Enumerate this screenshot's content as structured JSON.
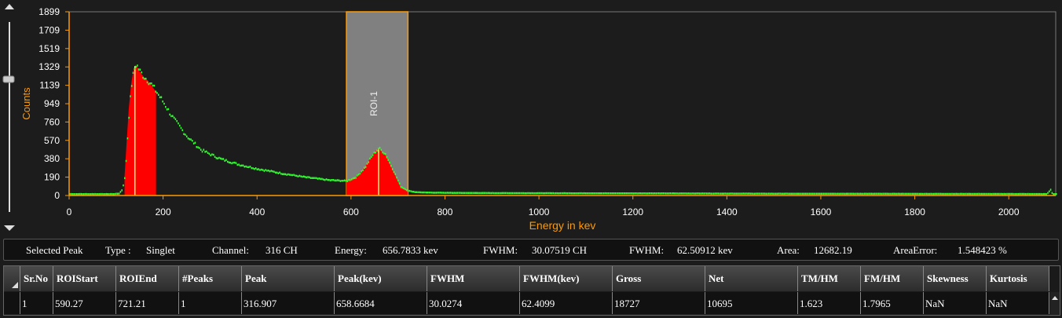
{
  "chart_data": {
    "type": "line",
    "xlabel": "Energy in kev",
    "ylabel": "Counts",
    "xlim": [
      0,
      2100
    ],
    "ylim": [
      0,
      1899
    ],
    "x_ticks": [
      "0",
      "200",
      "400",
      "600",
      "800",
      "1000",
      "1200",
      "1400",
      "1600",
      "1800",
      "2000"
    ],
    "y_ticks": [
      "0",
      "190",
      "380",
      "570",
      "760",
      "949",
      "1139",
      "1329",
      "1519",
      "1709",
      "1899"
    ],
    "roi": {
      "label": "ROI-1",
      "start": 590.27,
      "end": 721.21
    },
    "peaks": [
      140,
      658.67
    ],
    "filled_regions": [
      [
        118,
        185
      ],
      [
        590,
        721
      ]
    ],
    "series": [
      {
        "x": [
          0,
          95,
          105,
          112,
          118,
          122,
          127,
          132,
          137,
          141,
          145,
          150,
          155,
          160,
          167,
          175,
          185,
          200,
          220,
          250,
          280,
          320,
          360,
          400,
          450,
          500,
          550,
          590,
          610,
          630,
          645,
          658,
          672,
          690,
          705,
          720,
          735,
          760,
          800,
          900,
          1000,
          1200,
          1400,
          1600,
          1800,
          2000,
          2080,
          2088,
          2092,
          2100
        ],
        "y": [
          15,
          15,
          20,
          60,
          200,
          520,
          900,
          1150,
          1300,
          1350,
          1330,
          1280,
          1250,
          1220,
          1190,
          1140,
          1070,
          960,
          800,
          610,
          470,
          380,
          320,
          275,
          230,
          190,
          160,
          150,
          190,
          300,
          420,
          490,
          430,
          250,
          90,
          50,
          35,
          30,
          28,
          25,
          24,
          22,
          20,
          18,
          17,
          16,
          15,
          60,
          15,
          15
        ]
      }
    ]
  },
  "info_bar": {
    "selected_peak_label": "Selected Peak",
    "type_label": "Type :",
    "type_value": "Singlet",
    "channel_label": "Channel:",
    "channel_value": "316 CH",
    "energy_label": "Energy:",
    "energy_value": "656.7833 kev",
    "fwhm_ch_label": "FWHM:",
    "fwhm_ch_value": "30.07519 CH",
    "fwhm_kev_label": "FWHM:",
    "fwhm_kev_value": "62.50912 kev",
    "area_label": "Area:",
    "area_value": "12682.19",
    "area_error_label": "AreaError:",
    "area_error_value": "1.548423 %"
  },
  "table": {
    "columns": [
      "Sr.No",
      "ROIStart",
      "ROIEnd",
      "#Peaks",
      "Peak",
      "Peak(kev)",
      "FWHM",
      "FWHM(kev)",
      "Gross",
      "Net",
      "TM/HM",
      "FM/HM",
      "Skewness",
      "Kurtosis"
    ],
    "rows": [
      [
        "1",
        "590.27",
        "721.21",
        "1",
        "316.907",
        "658.6684",
        "30.0274",
        "62.4099",
        "18727",
        "10695",
        "1.623",
        "1.7965",
        "NaN",
        "NaN"
      ]
    ]
  },
  "colors": {
    "axis": "#ff9900",
    "data": "#33ff33",
    "fill": "#ff0000",
    "roi": "#808080"
  }
}
